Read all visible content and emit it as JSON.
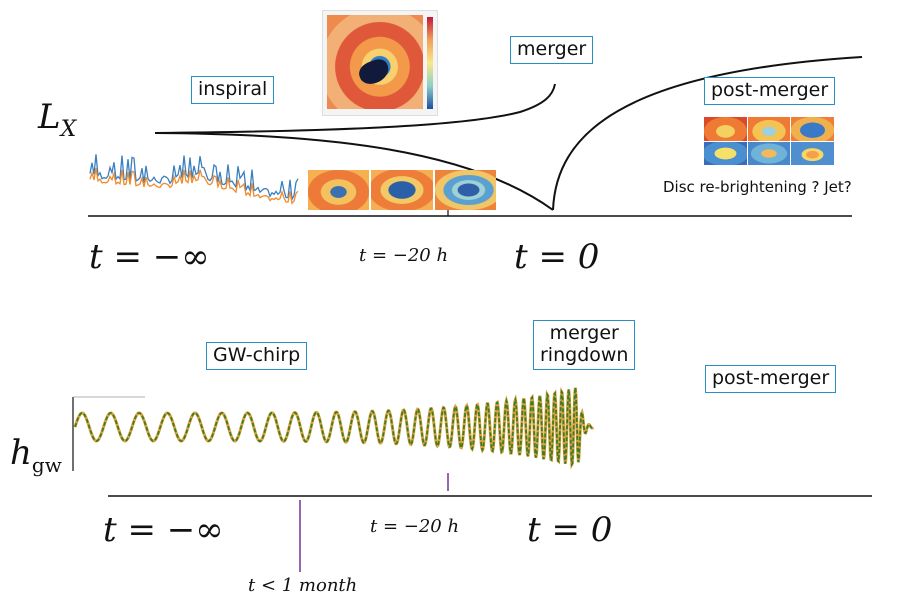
{
  "top_panel": {
    "ylabel_main": "L",
    "ylabel_sub": "X",
    "label_inspiral": "inspiral",
    "label_merger": "merger",
    "label_post_merger": "post-merger",
    "caption": "Disc re-brightening ? Jet?",
    "t_minus_inf": "t = −∞",
    "t_minus_20h": "t = −20 h",
    "t_zero": "t = 0"
  },
  "bottom_panel": {
    "ylabel_main": "h",
    "ylabel_sub": "gw",
    "label_chirp": "GW-chirp",
    "label_merger_line1": "merger",
    "label_merger_line2": "ringdown",
    "label_post_merger": "post-merger",
    "t_minus_inf": "t = −∞",
    "t_minus_20h": "t = −20 h",
    "t_zero": "t = 0",
    "t_month": "t < 1 month"
  },
  "colors": {
    "box_border": "#2b8fc4",
    "lightcurve_blue": "#3a7fbf",
    "lightcurve_orange": "#f08a2a",
    "wave_green": "#3a7d2a",
    "wave_orange": "#e0a23a",
    "marker_purple": "#7b3fa0"
  }
}
